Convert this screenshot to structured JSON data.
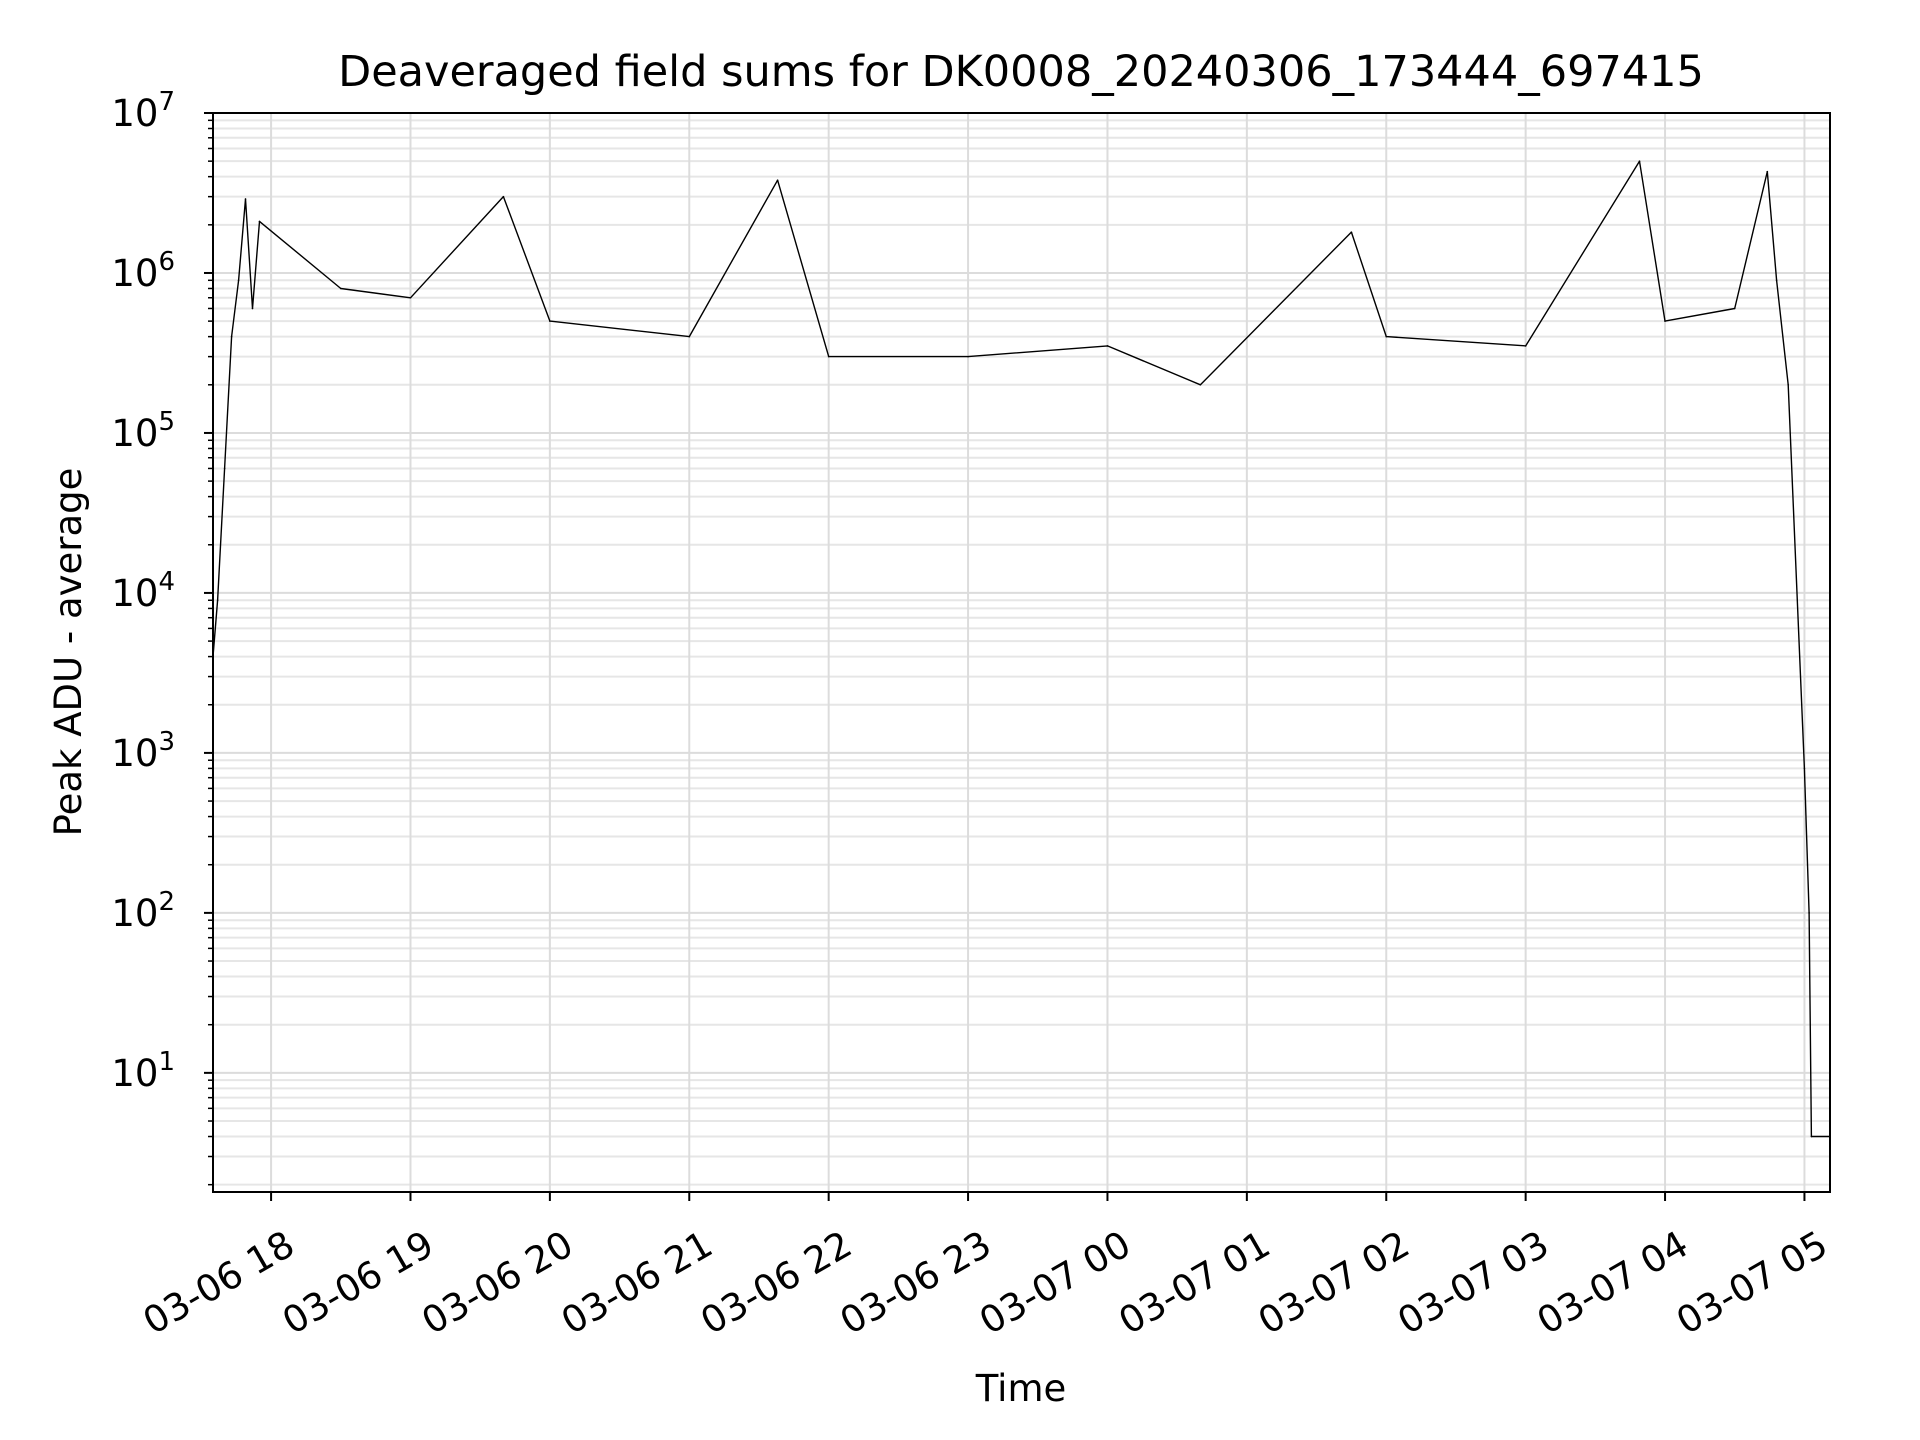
{
  "chart_data": {
    "type": "line",
    "title": "Deaveraged field sums for DK0008_20240306_173444_697415",
    "xlabel": "Time",
    "ylabel": "Peak ADU - average",
    "yscale": "log",
    "ylim": [
      1.8,
      10000000
    ],
    "xlim": [
      "03-06 17:35",
      "03-07 05:11"
    ],
    "grid": true,
    "x_ticks": [
      "03-06 18",
      "03-06 19",
      "03-06 20",
      "03-06 21",
      "03-06 22",
      "03-06 23",
      "03-07 00",
      "03-07 01",
      "03-07 02",
      "03-07 03",
      "03-07 04",
      "03-07 05"
    ],
    "y_ticks": [
      {
        "value": 10,
        "base": "10",
        "exp": "1"
      },
      {
        "value": 100,
        "base": "10",
        "exp": "2"
      },
      {
        "value": 1000,
        "base": "10",
        "exp": "3"
      },
      {
        "value": 10000,
        "base": "10",
        "exp": "4"
      },
      {
        "value": 100000,
        "base": "10",
        "exp": "5"
      },
      {
        "value": 1000000,
        "base": "10",
        "exp": "6"
      },
      {
        "value": 10000000,
        "base": "10",
        "exp": "7"
      }
    ],
    "series": [
      {
        "color": "#000000",
        "points": [
          {
            "x": "03-06 17:35",
            "y": 4000
          },
          {
            "x": "03-06 17:37",
            "y": 9000
          },
          {
            "x": "03-06 17:40",
            "y": 60000
          },
          {
            "x": "03-06 17:43",
            "y": 400000
          },
          {
            "x": "03-06 17:46",
            "y": 900000
          },
          {
            "x": "03-06 17:49",
            "y": 2900000
          },
          {
            "x": "03-06 17:52",
            "y": 600000
          },
          {
            "x": "03-06 17:55",
            "y": 2100000
          },
          {
            "x": "03-06 18:30",
            "y": 800000
          },
          {
            "x": "03-06 19:00",
            "y": 700000
          },
          {
            "x": "03-06 19:40",
            "y": 3000000
          },
          {
            "x": "03-06 20:00",
            "y": 500000
          },
          {
            "x": "03-06 21:00",
            "y": 400000
          },
          {
            "x": "03-06 21:38",
            "y": 3800000
          },
          {
            "x": "03-06 22:00",
            "y": 300000
          },
          {
            "x": "03-06 23:00",
            "y": 300000
          },
          {
            "x": "03-07 00:00",
            "y": 350000
          },
          {
            "x": "03-07 00:40",
            "y": 200000
          },
          {
            "x": "03-07 01:45",
            "y": 1800000
          },
          {
            "x": "03-07 02:00",
            "y": 400000
          },
          {
            "x": "03-07 03:00",
            "y": 350000
          },
          {
            "x": "03-07 03:49",
            "y": 5000000
          },
          {
            "x": "03-07 04:00",
            "y": 500000
          },
          {
            "x": "03-07 04:30",
            "y": 600000
          },
          {
            "x": "03-07 04:44",
            "y": 4300000
          },
          {
            "x": "03-07 04:48",
            "y": 900000
          },
          {
            "x": "03-07 04:53",
            "y": 200000
          },
          {
            "x": "03-07 05:00",
            "y": 800
          },
          {
            "x": "03-07 05:02",
            "y": 100
          },
          {
            "x": "03-07 05:03",
            "y": 4
          },
          {
            "x": "03-07 05:11",
            "y": 4
          }
        ]
      }
    ]
  }
}
